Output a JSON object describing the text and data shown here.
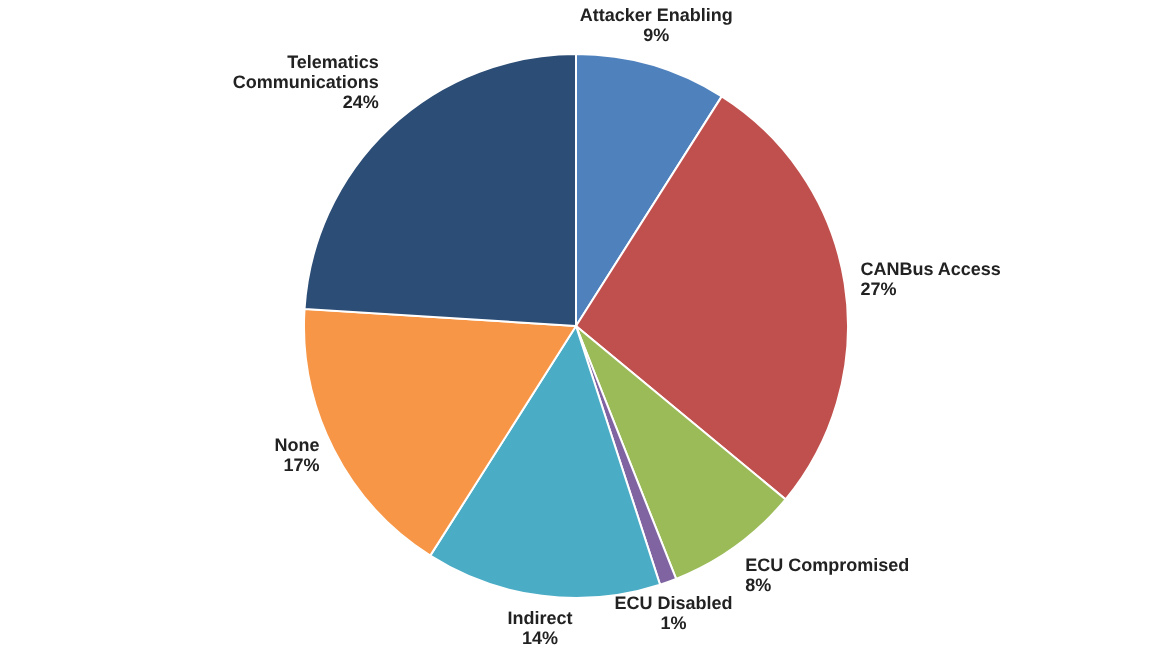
{
  "chart_data": {
    "type": "pie",
    "categories": [
      "Attacker Enabling",
      "CANBus Access",
      "ECU Compromised",
      "ECU Disabled",
      "Indirect",
      "None",
      "Telematics Communications"
    ],
    "values": [
      9,
      27,
      8,
      1,
      14,
      17,
      24
    ],
    "value_labels": [
      "9%",
      "27%",
      "8%",
      "1%",
      "14%",
      "17%",
      "24%"
    ],
    "colors": [
      "#4f81bd",
      "#c0504d",
      "#9bbb59",
      "#8064a2",
      "#4bacc6",
      "#f79646",
      "#2c4d75"
    ]
  }
}
